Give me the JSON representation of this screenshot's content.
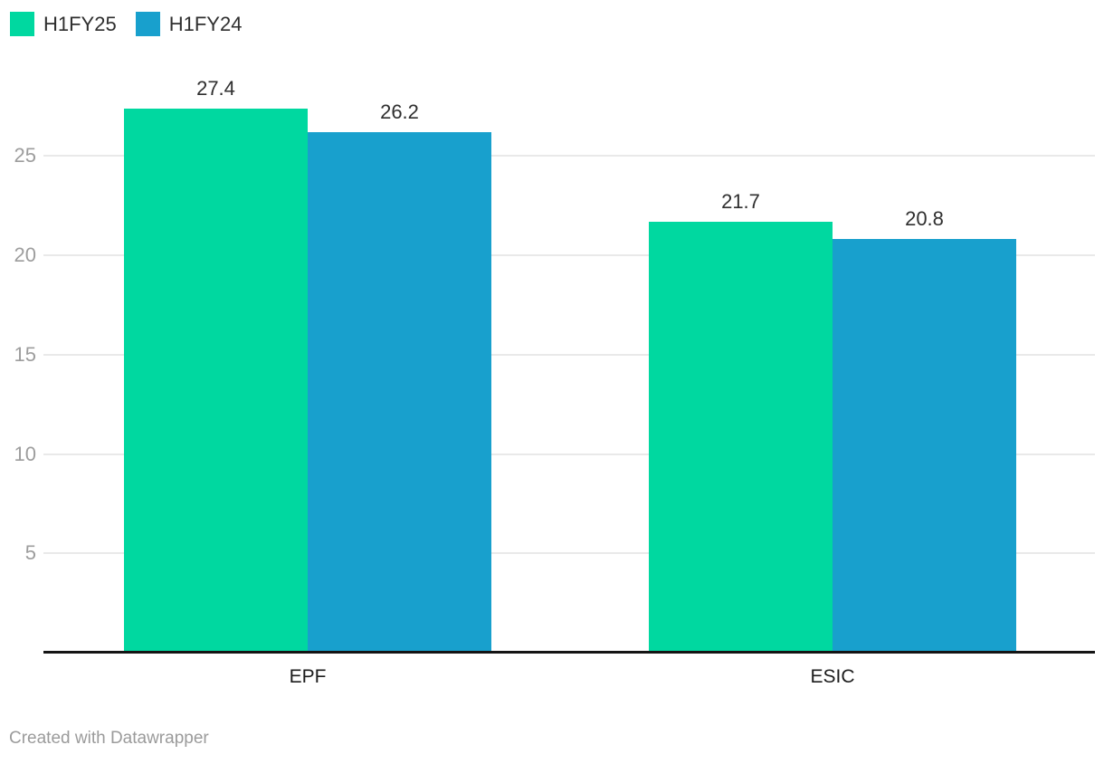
{
  "chart_data": {
    "type": "bar",
    "title": "",
    "xlabel": "",
    "ylabel": "",
    "categories": [
      "EPF",
      "ESIC"
    ],
    "series": [
      {
        "name": "H1FY25",
        "color": "#00d8a0",
        "values": [
          27.4,
          21.7
        ]
      },
      {
        "name": "H1FY24",
        "color": "#18a0cd",
        "values": [
          26.2,
          20.8
        ]
      }
    ],
    "yticks": [
      5,
      10,
      15,
      20,
      25
    ],
    "ylim": [
      0,
      29.6
    ],
    "grid": true,
    "legend_position": "top-left",
    "value_labels_shown": true,
    "value_label_decimals": 1
  },
  "colors": {
    "axis_line": "#141414",
    "gridline": "#e9e9e9",
    "tick_text": "#9d9d9d",
    "value_text": "#2f2f2f",
    "category_text": "#1c1c1c",
    "footer_text": "#9b9b9b"
  },
  "footer": {
    "credit": "Created with Datawrapper"
  }
}
